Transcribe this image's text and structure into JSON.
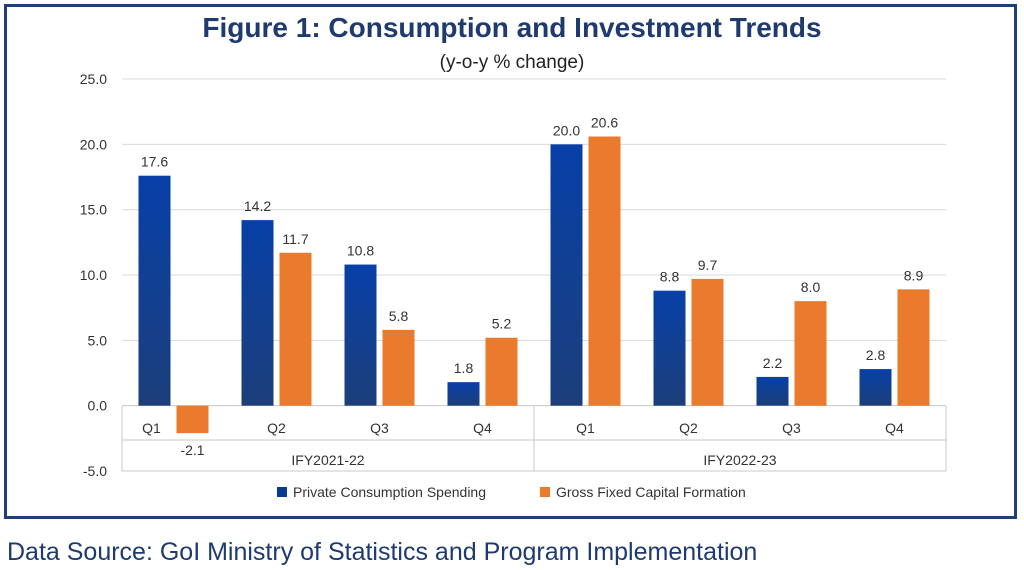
{
  "chart_data": {
    "type": "bar",
    "title": "Figure 1: Consumption and Investment Trends",
    "subtitle": "(y-o-y % change)",
    "ylim": [
      -5,
      25
    ],
    "yticks": [
      "25.0",
      "20.0",
      "15.0",
      "10.0",
      "5.0",
      "0.0",
      "-5.0"
    ],
    "ytick_values": [
      25,
      20,
      15,
      10,
      5,
      0,
      -5
    ],
    "grid": true,
    "legend_position": "bottom",
    "groups": [
      {
        "label": "IFY2021-22",
        "categories": [
          "Q1",
          "Q2",
          "Q3",
          "Q4"
        ]
      },
      {
        "label": "IFY2022-23",
        "categories": [
          "Q1",
          "Q2",
          "Q3",
          "Q4"
        ]
      }
    ],
    "categories": [
      "Q1",
      "Q2",
      "Q3",
      "Q4",
      "Q1",
      "Q2",
      "Q3",
      "Q4"
    ],
    "series": [
      {
        "name": "Private Consumption Spending",
        "color": "#0a3a8c",
        "values": [
          17.6,
          14.2,
          10.8,
          1.8,
          20.0,
          8.8,
          2.2,
          2.8
        ],
        "labels": [
          "17.6",
          "14.2",
          "10.8",
          "1.8",
          "20.0",
          "8.8",
          "2.2",
          "2.8"
        ]
      },
      {
        "name": "Gross Fixed Capital Formation",
        "color": "#ea7a2c",
        "values": [
          -2.1,
          11.7,
          5.8,
          5.2,
          20.6,
          9.7,
          8.0,
          8.9
        ],
        "labels": [
          "-2.1",
          "11.7",
          "5.8",
          "5.2",
          "20.6",
          "9.7",
          "8.0",
          "8.9"
        ]
      }
    ]
  },
  "source": "Data Source:  GoI Ministry of Statistics and Program Implementation",
  "colors": {
    "frame": "#1f3f7a",
    "title": "#1f3a6e",
    "grid": "#d9d9d9"
  }
}
